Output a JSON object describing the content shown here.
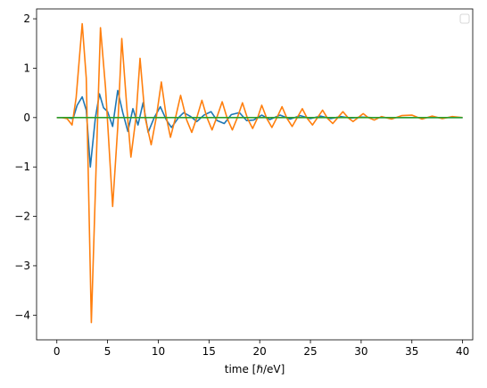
{
  "chart_data": {
    "type": "line",
    "title": "",
    "xlabel": "time [ℏ/eV]",
    "ylabel": "",
    "xlim": [
      -2,
      41
    ],
    "ylim": [
      -4.5,
      2.2
    ],
    "xticks": [
      0,
      5,
      10,
      15,
      20,
      25,
      30,
      35,
      40
    ],
    "xtick_labels": [
      "0",
      "5",
      "10",
      "15",
      "20",
      "25",
      "30",
      "35",
      "40"
    ],
    "yticks": [
      -4,
      -3,
      -2,
      -1,
      0,
      1,
      2
    ],
    "ytick_labels": [
      "−4",
      "−3",
      "−2",
      "−1",
      "0",
      "1",
      "2"
    ],
    "grid": false,
    "legend": {
      "placement": "top-right",
      "entries": []
    },
    "series": [
      {
        "color": "#1f77b4",
        "points": [
          [
            0,
            0
          ],
          [
            1,
            0
          ],
          [
            1.6,
            -0.02
          ],
          [
            2.0,
            0.25
          ],
          [
            2.5,
            0.42
          ],
          [
            2.9,
            0.15
          ],
          [
            3.3,
            -1.0
          ],
          [
            3.8,
            0.0
          ],
          [
            4.2,
            0.48
          ],
          [
            4.6,
            0.2
          ],
          [
            5.0,
            0.12
          ],
          [
            5.5,
            -0.18
          ],
          [
            6.0,
            0.55
          ],
          [
            6.5,
            0.1
          ],
          [
            7.0,
            -0.28
          ],
          [
            7.5,
            0.18
          ],
          [
            8.0,
            -0.15
          ],
          [
            8.5,
            0.3
          ],
          [
            9.0,
            -0.3
          ],
          [
            9.6,
            0.0
          ],
          [
            10.2,
            0.22
          ],
          [
            10.8,
            -0.05
          ],
          [
            11.3,
            -0.2
          ],
          [
            12.0,
            0.0
          ],
          [
            12.5,
            0.1
          ],
          [
            13.2,
            0.02
          ],
          [
            13.8,
            -0.08
          ],
          [
            14.5,
            0.05
          ],
          [
            15.2,
            0.12
          ],
          [
            15.8,
            -0.06
          ],
          [
            16.5,
            -0.12
          ],
          [
            17.2,
            0.06
          ],
          [
            18.0,
            0.1
          ],
          [
            18.7,
            -0.06
          ],
          [
            19.4,
            -0.05
          ],
          [
            20.2,
            0.05
          ],
          [
            21.0,
            -0.04
          ],
          [
            22.0,
            0.05
          ],
          [
            23.0,
            -0.03
          ],
          [
            24.0,
            0.04
          ],
          [
            25.0,
            -0.02
          ],
          [
            26.0,
            0.03
          ],
          [
            27.0,
            -0.02
          ],
          [
            28.0,
            0.02
          ],
          [
            29.0,
            -0.01
          ],
          [
            30.0,
            0.01
          ],
          [
            31.0,
            0.0
          ],
          [
            33.0,
            0.0
          ],
          [
            40.0,
            0.0
          ]
        ]
      },
      {
        "color": "#ff7f0e",
        "points": [
          [
            0,
            0
          ],
          [
            0.5,
            0
          ],
          [
            1.0,
            -0.02
          ],
          [
            1.5,
            -0.15
          ],
          [
            1.9,
            0.4
          ],
          [
            2.5,
            1.9
          ],
          [
            2.9,
            0.8
          ],
          [
            3.4,
            -4.15
          ],
          [
            3.9,
            -0.8
          ],
          [
            4.3,
            1.82
          ],
          [
            4.8,
            0.6
          ],
          [
            5.5,
            -1.8
          ],
          [
            6.0,
            -0.2
          ],
          [
            6.4,
            1.6
          ],
          [
            6.9,
            0.2
          ],
          [
            7.3,
            -0.8
          ],
          [
            7.8,
            0.0
          ],
          [
            8.2,
            1.2
          ],
          [
            8.7,
            0.0
          ],
          [
            9.3,
            -0.55
          ],
          [
            9.8,
            0.0
          ],
          [
            10.3,
            0.72
          ],
          [
            10.8,
            0.0
          ],
          [
            11.2,
            -0.4
          ],
          [
            11.7,
            0.0
          ],
          [
            12.2,
            0.45
          ],
          [
            12.8,
            -0.05
          ],
          [
            13.3,
            -0.3
          ],
          [
            13.8,
            0.0
          ],
          [
            14.3,
            0.35
          ],
          [
            14.8,
            0.0
          ],
          [
            15.3,
            -0.25
          ],
          [
            15.8,
            0.02
          ],
          [
            16.3,
            0.32
          ],
          [
            16.8,
            -0.02
          ],
          [
            17.3,
            -0.25
          ],
          [
            17.8,
            0.0
          ],
          [
            18.3,
            0.3
          ],
          [
            18.8,
            -0.02
          ],
          [
            19.3,
            -0.22
          ],
          [
            19.8,
            0.0
          ],
          [
            20.2,
            0.25
          ],
          [
            20.7,
            -0.02
          ],
          [
            21.2,
            -0.2
          ],
          [
            21.7,
            0.0
          ],
          [
            22.2,
            0.22
          ],
          [
            22.7,
            -0.02
          ],
          [
            23.2,
            -0.18
          ],
          [
            23.7,
            0.0
          ],
          [
            24.2,
            0.18
          ],
          [
            24.7,
            -0.02
          ],
          [
            25.2,
            -0.15
          ],
          [
            25.7,
            0.0
          ],
          [
            26.2,
            0.15
          ],
          [
            26.7,
            -0.02
          ],
          [
            27.2,
            -0.12
          ],
          [
            27.7,
            0.0
          ],
          [
            28.2,
            0.12
          ],
          [
            28.7,
            0.0
          ],
          [
            29.2,
            -0.08
          ],
          [
            29.7,
            0.0
          ],
          [
            30.2,
            0.08
          ],
          [
            30.7,
            0.0
          ],
          [
            31.3,
            -0.05
          ],
          [
            32.0,
            0.02
          ],
          [
            33.0,
            -0.03
          ],
          [
            34.0,
            0.04
          ],
          [
            35.0,
            0.05
          ],
          [
            36.0,
            -0.03
          ],
          [
            37.0,
            0.03
          ],
          [
            38.0,
            -0.02
          ],
          [
            39.0,
            0.02
          ],
          [
            40.0,
            0.0
          ]
        ]
      },
      {
        "color": "#2ca02c",
        "points": [
          [
            0,
            0
          ],
          [
            5,
            0
          ],
          [
            10,
            0
          ],
          [
            15,
            0
          ],
          [
            20,
            0
          ],
          [
            25,
            0
          ],
          [
            30,
            0
          ],
          [
            35,
            0
          ],
          [
            40,
            0
          ]
        ]
      }
    ]
  }
}
